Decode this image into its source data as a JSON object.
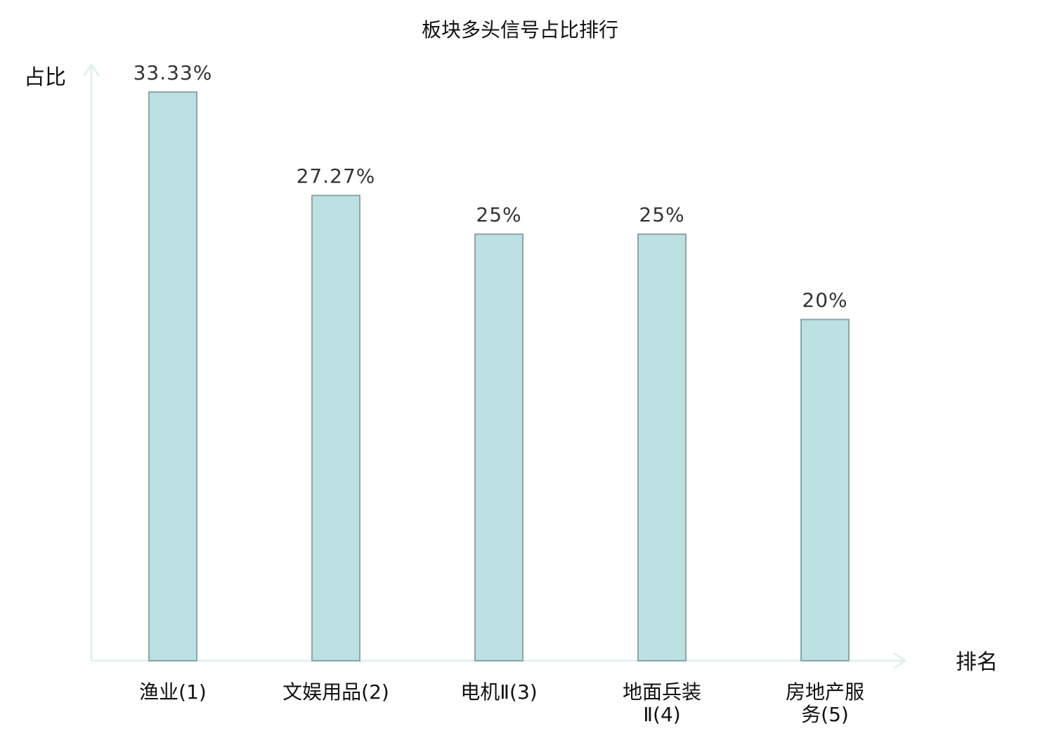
{
  "chart_data": {
    "type": "bar",
    "title": "板块多头信号占比排行",
    "xlabel": "排名",
    "ylabel": "占比",
    "categories": [
      [
        "渔业(1)"
      ],
      [
        "文娱用品(2)"
      ],
      [
        "电机Ⅱ(3)"
      ],
      [
        "地面兵装",
        "Ⅱ(4)"
      ],
      [
        "房地产服",
        "务(5)"
      ]
    ],
    "values": [
      33.33,
      27.27,
      25,
      25,
      20
    ],
    "value_labels": [
      "33.33%",
      "27.27%",
      "25%",
      "25%",
      "20%"
    ],
    "highlight_index": 4,
    "ylim": [
      0,
      35
    ],
    "grid": false,
    "colors": {
      "bar_fill": "#bde1e2",
      "bar_stroke": "#8aa6a7",
      "axis": "#e0f2ef",
      "highlight_text": "#e00000",
      "text": "#111111",
      "value_text": "#333333"
    }
  }
}
